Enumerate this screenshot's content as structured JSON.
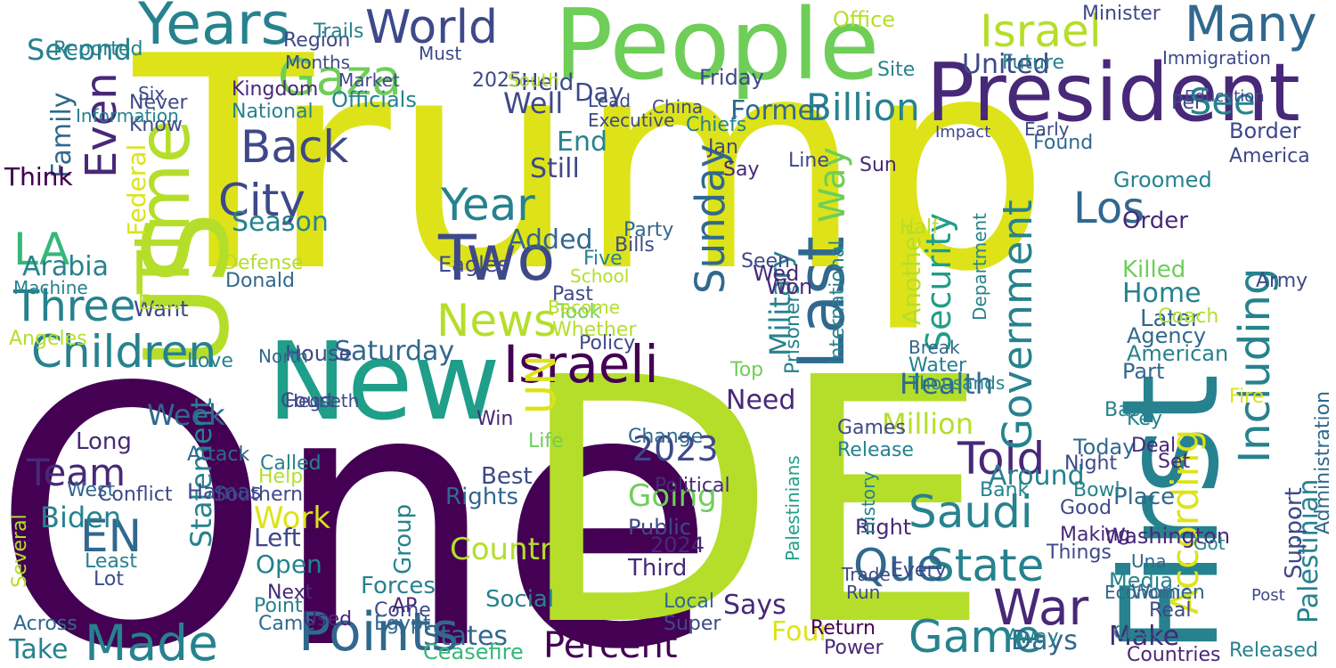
{
  "background": "#ffffff",
  "palette": [
    "#440154",
    "#482878",
    "#3e4989",
    "#31688e",
    "#26828e",
    "#1f9e89",
    "#35b779",
    "#6ece58",
    "#b5de2b",
    "#dde318"
  ],
  "words": [
    {
      "text": "Trump",
      "color": "#dde318"
    },
    {
      "text": "One",
      "color": "#440154"
    },
    {
      "text": "DE",
      "color": "#b5de2b"
    },
    {
      "text": "New",
      "color": "#1f9e89"
    },
    {
      "text": "People",
      "color": "#6ece58"
    },
    {
      "text": "First",
      "color": "#26828e"
    },
    {
      "text": "US",
      "color": "#b5de2b"
    },
    {
      "text": "President",
      "color": "#482878"
    },
    {
      "text": "Time",
      "color": "#b5de2b"
    },
    {
      "text": "Israeli",
      "color": "#440154"
    },
    {
      "text": "Last",
      "color": "#31688e"
    },
    {
      "text": "Two",
      "color": "#3e4989"
    },
    {
      "text": "Years",
      "color": "#26828e"
    },
    {
      "text": "Gaza",
      "color": "#6ece58"
    },
    {
      "text": "Israel",
      "color": "#b5de2b"
    },
    {
      "text": "Points",
      "color": "#31688e"
    },
    {
      "text": "Made",
      "color": "#26828e"
    },
    {
      "text": "Children",
      "color": "#26828e"
    },
    {
      "text": "World",
      "color": "#3e4989"
    },
    {
      "text": "Many",
      "color": "#31688e"
    },
    {
      "text": "War",
      "color": "#482878"
    },
    {
      "text": "Game",
      "color": "#26828e"
    },
    {
      "text": "Percent",
      "color": "#440154"
    },
    {
      "text": "State",
      "color": "#26828e"
    },
    {
      "text": "Que",
      "color": "#31688e"
    },
    {
      "text": "Saudi",
      "color": "#26828e"
    },
    {
      "text": "Told",
      "color": "#482878"
    },
    {
      "text": "City",
      "color": "#3e4989"
    },
    {
      "text": "Back",
      "color": "#3e4989"
    },
    {
      "text": "Three",
      "color": "#26828e"
    },
    {
      "text": "LA",
      "color": "#35b779"
    },
    {
      "text": "EN",
      "color": "#31688e"
    },
    {
      "text": "Government",
      "color": "#26828e"
    },
    {
      "text": "Including",
      "color": "#26828e"
    },
    {
      "text": "According",
      "color": "#dde318"
    },
    {
      "text": "Sunday",
      "color": "#31688e"
    },
    {
      "text": "Year",
      "color": "#26828e"
    },
    {
      "text": "UN",
      "color": "#dde318"
    },
    {
      "text": "News",
      "color": "#b5de2b"
    },
    {
      "text": "Los",
      "color": "#31688e"
    },
    {
      "text": "2023",
      "color": "#3e4989"
    },
    {
      "text": "Palestinian",
      "color": "#26828e"
    },
    {
      "text": "Administration",
      "color": "#31688e"
    },
    {
      "text": "Billion",
      "color": "#26828e"
    },
    {
      "text": "Team",
      "color": "#482878"
    },
    {
      "text": "Biden",
      "color": "#26828e"
    },
    {
      "text": "Week",
      "color": "#31688e"
    },
    {
      "text": "Work",
      "color": "#dde318"
    },
    {
      "text": "Country",
      "color": "#b5de2b"
    },
    {
      "text": "Saturday",
      "color": "#31688e"
    },
    {
      "text": "United",
      "color": "#3e4989"
    },
    {
      "text": "Going",
      "color": "#6ece58"
    },
    {
      "text": "Security",
      "color": "#1f9e89"
    },
    {
      "text": "Military",
      "color": "#26828e"
    },
    {
      "text": "Another",
      "color": "#b5de2b"
    },
    {
      "text": "Health",
      "color": "#31688e"
    },
    {
      "text": "Million",
      "color": "#b5de2b"
    },
    {
      "text": "Around",
      "color": "#26828e"
    },
    {
      "text": "Washington",
      "color": "#482878"
    },
    {
      "text": "Statement",
      "color": "#26828e"
    },
    {
      "text": "Family",
      "color": "#31688e"
    },
    {
      "text": "Even",
      "color": "#482878"
    },
    {
      "text": "Season",
      "color": "#26828e"
    },
    {
      "text": "Arabia",
      "color": "#26828e"
    },
    {
      "text": "Think",
      "color": "#440154"
    },
    {
      "text": "Federal",
      "color": "#dde318"
    },
    {
      "text": "Machine",
      "color": "#26828e"
    },
    {
      "text": "Added",
      "color": "#31688e"
    },
    {
      "text": "Still",
      "color": "#3e4989"
    },
    {
      "text": "Well",
      "color": "#3e4989"
    },
    {
      "text": "End",
      "color": "#26828e"
    },
    {
      "text": "Second",
      "color": "#26828e"
    },
    {
      "text": "Former",
      "color": "#31688e"
    },
    {
      "text": "Officials",
      "color": "#26828e"
    },
    {
      "text": "National",
      "color": "#26828e"
    },
    {
      "text": "Kingdom",
      "color": "#482878"
    },
    {
      "text": "Know",
      "color": "#3e4989"
    },
    {
      "text": "Never",
      "color": "#3e4989"
    },
    {
      "text": "Chiefs",
      "color": "#26828e"
    },
    {
      "text": "Day",
      "color": "#3e4989"
    },
    {
      "text": "Need",
      "color": "#482878"
    },
    {
      "text": "Says",
      "color": "#482878"
    },
    {
      "text": "Four",
      "color": "#dde318"
    },
    {
      "text": "Return",
      "color": "#440154"
    },
    {
      "text": "Power",
      "color": "#482878"
    },
    {
      "text": "Make",
      "color": "#482878"
    },
    {
      "text": "Days",
      "color": "#31688e"
    },
    {
      "text": "States",
      "color": "#31688e"
    },
    {
      "text": "Take",
      "color": "#26828e"
    },
    {
      "text": "Forces",
      "color": "#26828e"
    },
    {
      "text": "Left",
      "color": "#3e4989"
    },
    {
      "text": "Open",
      "color": "#26828e"
    },
    {
      "text": "Next",
      "color": "#482878"
    },
    {
      "text": "Group",
      "color": "#26828e"
    },
    {
      "text": "Social",
      "color": "#26828e"
    },
    {
      "text": "Rights",
      "color": "#31688e"
    },
    {
      "text": "Best",
      "color": "#3e4989"
    },
    {
      "text": "Public",
      "color": "#3e4989"
    },
    {
      "text": "2024",
      "color": "#482878"
    },
    {
      "text": "Third",
      "color": "#482878"
    },
    {
      "text": "Media",
      "color": "#26828e"
    },
    {
      "text": "Right",
      "color": "#482878"
    },
    {
      "text": "Place",
      "color": "#31688e"
    },
    {
      "text": "Support",
      "color": "#3e4989"
    },
    {
      "text": "Border",
      "color": "#3e4989"
    },
    {
      "text": "Home",
      "color": "#26828e"
    },
    {
      "text": "Killed",
      "color": "#6ece58"
    },
    {
      "text": "Later",
      "color": "#31688e"
    },
    {
      "text": "Order",
      "color": "#482878"
    },
    {
      "text": "Groomed",
      "color": "#26828e"
    },
    {
      "text": "Found",
      "color": "#31688e"
    },
    {
      "text": "Agency",
      "color": "#31688e"
    },
    {
      "text": "American",
      "color": "#26828e"
    },
    {
      "text": "Part",
      "color": "#31688e"
    },
    {
      "text": "Palestinians",
      "color": "#1f9e89"
    },
    {
      "text": "Way",
      "color": "#6ece58"
    },
    {
      "text": "Prisoners",
      "color": "#26828e"
    },
    {
      "text": "International",
      "color": "#26828e"
    },
    {
      "text": "Hamas",
      "color": "#3e4989"
    },
    {
      "text": "Long",
      "color": "#482878"
    },
    {
      "text": "House",
      "color": "#3e4989"
    },
    {
      "text": "Court",
      "color": "#3e4989"
    },
    {
      "text": "Point",
      "color": "#26828e"
    },
    {
      "text": "Came",
      "color": "#31688e"
    },
    {
      "text": "Used",
      "color": "#482878"
    },
    {
      "text": "Come",
      "color": "#3e4989"
    },
    {
      "text": "Ceasefire",
      "color": "#35b779"
    },
    {
      "text": "Super",
      "color": "#3e4989"
    },
    {
      "text": "Released",
      "color": "#26828e"
    },
    {
      "text": "Countries",
      "color": "#482878"
    },
    {
      "text": "Today",
      "color": "#31688e"
    },
    {
      "text": "Bowl",
      "color": "#26828e"
    },
    {
      "text": "Night",
      "color": "#3e4989"
    },
    {
      "text": "Good",
      "color": "#3e4989"
    },
    {
      "text": "Making",
      "color": "#482878"
    },
    {
      "text": "Things",
      "color": "#3e4989"
    },
    {
      "text": "Every",
      "color": "#3e4989"
    },
    {
      "text": "Games",
      "color": "#3e4989"
    },
    {
      "text": "Release",
      "color": "#26828e"
    },
    {
      "text": "Policy",
      "color": "#3e4989"
    },
    {
      "text": "Took",
      "color": "#6ece58"
    },
    {
      "text": "Whether",
      "color": "#b5de2b"
    },
    {
      "text": "Past",
      "color": "#3e4989"
    },
    {
      "text": "Five",
      "color": "#26828e"
    },
    {
      "text": "School",
      "color": "#b5de2b"
    },
    {
      "text": "Become",
      "color": "#b5de2b"
    },
    {
      "text": "Eagles",
      "color": "#3e4989"
    },
    {
      "text": "Bills",
      "color": "#3e4989"
    },
    {
      "text": "Party",
      "color": "#31688e"
    },
    {
      "text": "Seen",
      "color": "#3e4989"
    },
    {
      "text": "Say",
      "color": "#482878"
    },
    {
      "text": "Jan",
      "color": "#3e4989"
    },
    {
      "text": "Executive",
      "color": "#3e4989"
    },
    {
      "text": "Friday",
      "color": "#3e4989"
    },
    {
      "text": "Held",
      "color": "#3e4989"
    },
    {
      "text": "2025",
      "color": "#3e4989"
    },
    {
      "text": "South",
      "color": "#b5de2b"
    },
    {
      "text": "China",
      "color": "#3e4989"
    },
    {
      "text": "Lead",
      "color": "#3e4989"
    },
    {
      "text": "Office",
      "color": "#b5de2b"
    },
    {
      "text": "Site",
      "color": "#26828e"
    },
    {
      "text": "Per",
      "color": "#3e4989"
    },
    {
      "text": "See",
      "color": "#26828e"
    },
    {
      "text": "Minister",
      "color": "#3e4989"
    },
    {
      "text": "Future",
      "color": "#26828e"
    },
    {
      "text": "Immigration",
      "color": "#3e4989"
    },
    {
      "text": "Education",
      "color": "#3e4989"
    },
    {
      "text": "Information",
      "color": "#26828e"
    },
    {
      "text": "Region",
      "color": "#3e4989"
    },
    {
      "text": "Months",
      "color": "#3e4989"
    },
    {
      "text": "Market",
      "color": "#3e4989"
    },
    {
      "text": "Must",
      "color": "#3e4989"
    },
    {
      "text": "Trails",
      "color": "#26828e"
    },
    {
      "text": "Reported",
      "color": "#26828e"
    },
    {
      "text": "Six",
      "color": "#3e4989"
    },
    {
      "text": "Defense",
      "color": "#b5de2b"
    },
    {
      "text": "Donald",
      "color": "#31688e"
    },
    {
      "text": "Want",
      "color": "#3e4989"
    },
    {
      "text": "East",
      "color": "#b5de2b"
    },
    {
      "text": "Angeles",
      "color": "#b5de2b"
    },
    {
      "text": "Hegseth",
      "color": "#3e4989"
    },
    {
      "text": "North",
      "color": "#31688e"
    },
    {
      "text": "Wed",
      "color": "#482878"
    },
    {
      "text": "Won",
      "color": "#482878"
    },
    {
      "text": "Top",
      "color": "#6ece58"
    },
    {
      "text": "Change",
      "color": "#31688e"
    },
    {
      "text": "Political",
      "color": "#482878"
    },
    {
      "text": "Local",
      "color": "#31688e"
    },
    {
      "text": "AP",
      "color": "#482878"
    },
    {
      "text": "Egypt",
      "color": "#31688e"
    },
    {
      "text": "Lot",
      "color": "#3e4989"
    },
    {
      "text": "Least",
      "color": "#26828e"
    },
    {
      "text": "Across",
      "color": "#31688e"
    },
    {
      "text": "West",
      "color": "#31688e"
    },
    {
      "text": "Conflict",
      "color": "#3e4989"
    },
    {
      "text": "Southern",
      "color": "#3e4989"
    },
    {
      "text": "Win",
      "color": "#482878"
    },
    {
      "text": "Life",
      "color": "#6ece58"
    },
    {
      "text": "Help",
      "color": "#b5de2b"
    },
    {
      "text": "Called",
      "color": "#26828e"
    },
    {
      "text": "Water",
      "color": "#26828e"
    },
    {
      "text": "Thousands",
      "color": "#26828e"
    },
    {
      "text": "Break",
      "color": "#31688e"
    },
    {
      "text": "Coach",
      "color": "#b5de2b"
    },
    {
      "text": "America",
      "color": "#3e4989"
    },
    {
      "text": "Base",
      "color": "#26828e"
    },
    {
      "text": "Deal",
      "color": "#482878"
    },
    {
      "text": "Key",
      "color": "#26828e"
    },
    {
      "text": "Army",
      "color": "#3e4989"
    },
    {
      "text": "Fire",
      "color": "#dde318"
    },
    {
      "text": "Women",
      "color": "#31688e"
    },
    {
      "text": "Real",
      "color": "#3e4989"
    },
    {
      "text": "Away",
      "color": "#26828e"
    },
    {
      "text": "Bank",
      "color": "#26828e"
    },
    {
      "text": "Set",
      "color": "#482878"
    },
    {
      "text": "Una",
      "color": "#31688e"
    },
    {
      "text": "Got",
      "color": "#26828e"
    },
    {
      "text": "Economic",
      "color": "#31688e"
    },
    {
      "text": "Clear",
      "color": "#26828e"
    },
    {
      "text": "Post",
      "color": "#3e4989"
    },
    {
      "text": "Run",
      "color": "#3e4989"
    },
    {
      "text": "Trade",
      "color": "#3e4989"
    },
    {
      "text": "History",
      "color": "#26828e"
    },
    {
      "text": "Department",
      "color": "#26828e"
    },
    {
      "text": "Early",
      "color": "#3e4989"
    },
    {
      "text": "Half",
      "color": "#b5de2b"
    },
    {
      "text": "Sun",
      "color": "#482878"
    },
    {
      "text": "Line",
      "color": "#3e4989"
    },
    {
      "text": "Impact",
      "color": "#3e4989"
    },
    {
      "text": "Several",
      "color": "#b5de2b"
    },
    {
      "text": "Love",
      "color": "#26828e"
    },
    {
      "text": "Attack",
      "color": "#31688e"
    },
    {
      "text": "Think",
      "color": "#440154"
    }
  ]
}
